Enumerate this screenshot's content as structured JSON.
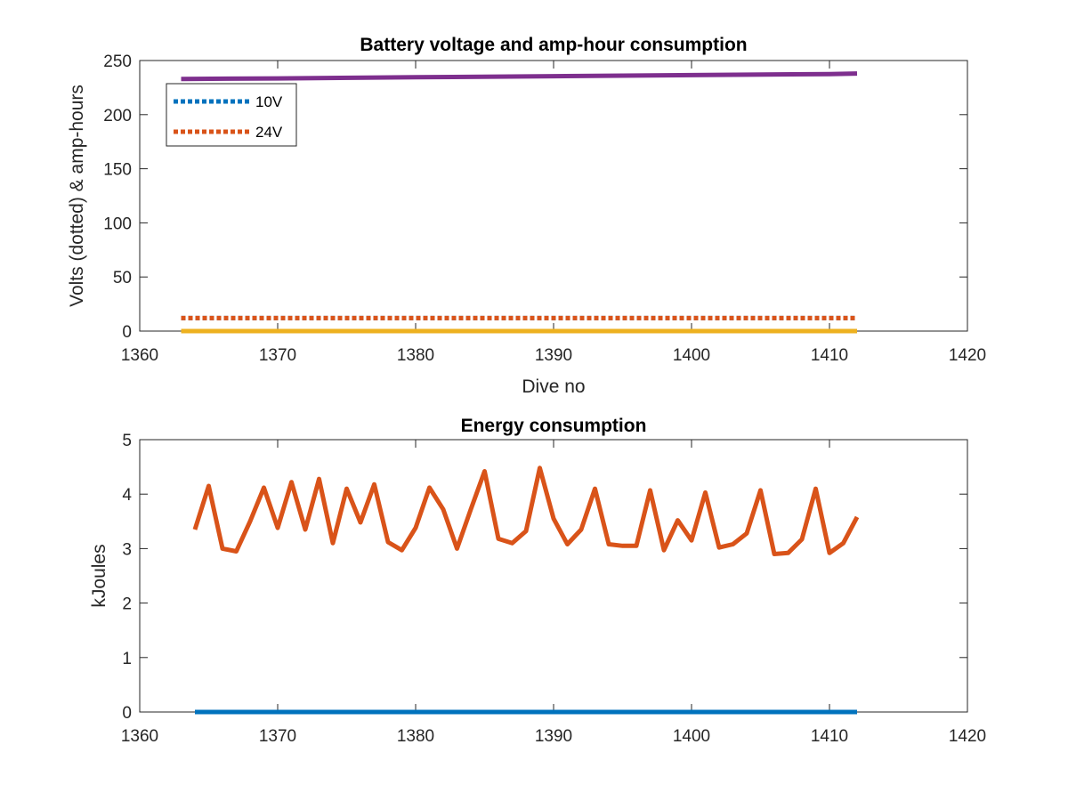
{
  "chart_data": [
    {
      "type": "line",
      "title": "Battery voltage and amp-hour consumption",
      "xlabel": "Dive no",
      "ylabel": "Volts (dotted) & amp-hours",
      "xlim": [
        1360,
        1420
      ],
      "ylim": [
        0,
        250
      ],
      "xticks": [
        1360,
        1370,
        1380,
        1390,
        1400,
        1410,
        1420
      ],
      "yticks": [
        0,
        50,
        100,
        150,
        200,
        250
      ],
      "grid": false,
      "legend_position": "top-left",
      "series": [
        {
          "name": "10V",
          "style": "dotted",
          "color": "#0072BD",
          "x": [
            1363,
            1412
          ],
          "y": [
            12,
            12
          ]
        },
        {
          "name": "24V",
          "style": "dotted",
          "color": "#D95319",
          "x": [
            1363,
            1412
          ],
          "y": [
            12,
            12
          ]
        },
        {
          "style": "solid",
          "color": "#EDB120",
          "x": [
            1363,
            1412
          ],
          "y": [
            0,
            0
          ]
        },
        {
          "style": "solid",
          "color": "#7E2F8E",
          "x": [
            1363,
            1370,
            1380,
            1390,
            1400,
            1410,
            1412
          ],
          "y": [
            233,
            233.5,
            234.5,
            235.5,
            236.5,
            237.5,
            238
          ]
        }
      ]
    },
    {
      "type": "line",
      "title": "Energy consumption",
      "xlabel": "",
      "ylabel": "kJoules",
      "xlim": [
        1360,
        1420
      ],
      "ylim": [
        0,
        5
      ],
      "xticks": [
        1360,
        1370,
        1380,
        1390,
        1400,
        1410,
        1420
      ],
      "yticks": [
        0,
        1,
        2,
        3,
        4,
        5
      ],
      "grid": false,
      "series": [
        {
          "style": "solid",
          "color": "#0072BD",
          "x": [
            1364,
            1412
          ],
          "y": [
            0,
            0
          ]
        },
        {
          "style": "solid",
          "color": "#D95319",
          "x": [
            1364,
            1365,
            1366,
            1367,
            1368,
            1369,
            1370,
            1371,
            1372,
            1373,
            1374,
            1375,
            1376,
            1377,
            1378,
            1379,
            1380,
            1381,
            1382,
            1383,
            1384,
            1385,
            1386,
            1387,
            1388,
            1389,
            1390,
            1391,
            1392,
            1393,
            1394,
            1395,
            1396,
            1397,
            1398,
            1399,
            1400,
            1401,
            1402,
            1403,
            1404,
            1405,
            1406,
            1407,
            1408,
            1409,
            1410,
            1411,
            1412
          ],
          "y": [
            3.35,
            4.15,
            3.0,
            2.95,
            3.5,
            4.12,
            3.38,
            4.22,
            3.35,
            4.28,
            3.1,
            4.1,
            3.48,
            4.18,
            3.12,
            2.97,
            3.38,
            4.12,
            3.72,
            3.0,
            3.72,
            4.42,
            3.18,
            3.1,
            3.32,
            4.48,
            3.55,
            3.08,
            3.35,
            4.1,
            3.08,
            3.05,
            3.05,
            4.07,
            2.97,
            3.52,
            3.15,
            4.03,
            3.02,
            3.08,
            3.28,
            4.07,
            2.9,
            2.92,
            3.17,
            4.1,
            2.92,
            3.1,
            3.58
          ]
        }
      ]
    }
  ]
}
